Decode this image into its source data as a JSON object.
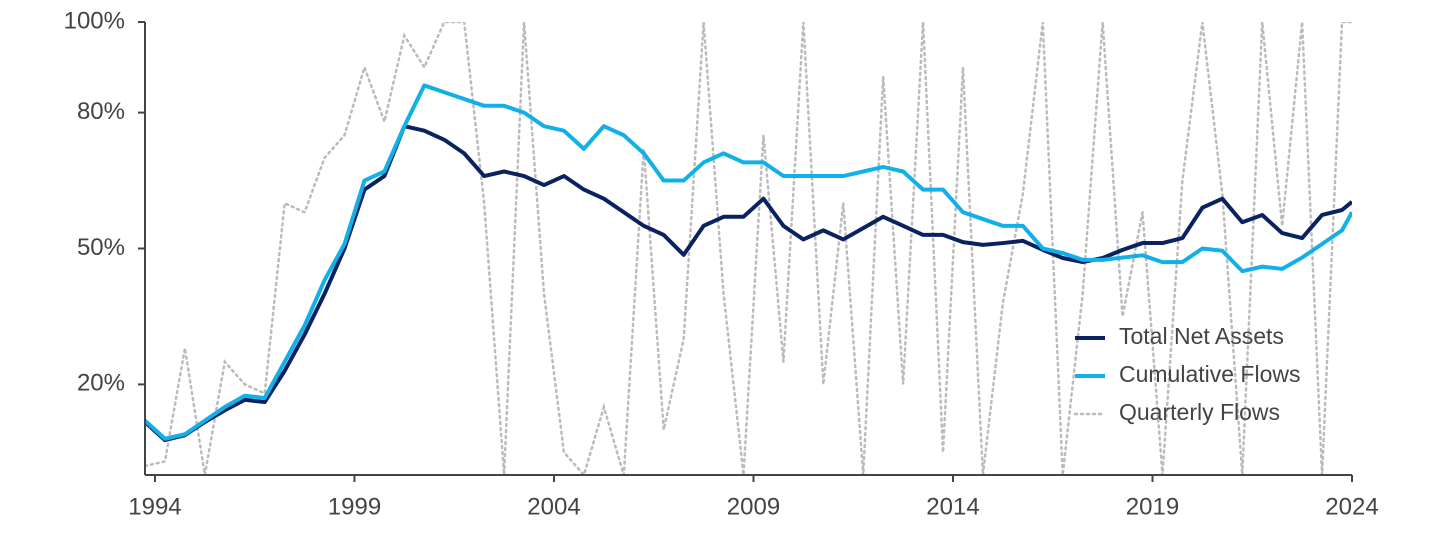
{
  "chart_data": {
    "type": "line",
    "x": [
      1993.75,
      1994.25,
      1994.75,
      1995.25,
      1995.75,
      1996.25,
      1996.75,
      1997.25,
      1997.75,
      1998.25,
      1998.75,
      1999.25,
      1999.75,
      2000.25,
      2000.75,
      2001.25,
      2001.75,
      2002.25,
      2002.75,
      2003.25,
      2003.75,
      2004.25,
      2004.75,
      2005.25,
      2005.75,
      2006.25,
      2006.75,
      2007.25,
      2007.75,
      2008.25,
      2008.75,
      2009.25,
      2009.75,
      2010.25,
      2010.75,
      2011.25,
      2011.75,
      2012.25,
      2012.75,
      2013.25,
      2013.75,
      2014.25,
      2014.75,
      2015.25,
      2015.75,
      2016.25,
      2016.75,
      2017.25,
      2017.75,
      2018.25,
      2018.75,
      2019.25,
      2019.75,
      2020.25,
      2020.75,
      2021.25,
      2021.75,
      2022.25,
      2022.75,
      2023.25,
      2023.75,
      2024
    ],
    "series": [
      {
        "name": "Total Net Assets",
        "color": "#0b2260",
        "style": "solid",
        "values": [
          11.7,
          7.7,
          8.8,
          11.7,
          14.3,
          16.6,
          16.1,
          23,
          31,
          40,
          50,
          63,
          66,
          77,
          76,
          74,
          71,
          66,
          67,
          66,
          64,
          66,
          63,
          61,
          58,
          55,
          53,
          48.6,
          55,
          57,
          57,
          61,
          55,
          52,
          54,
          52,
          54.5,
          57,
          55,
          53,
          53,
          51.4,
          50.8,
          51.2,
          51.7,
          49.7,
          47.9,
          47,
          47.9,
          49.7,
          51.2,
          51.2,
          52.3,
          59,
          61,
          55.8,
          57.4,
          53.4,
          52.3,
          57.4,
          58.5,
          60.3
        ]
      },
      {
        "name": "Cumulative Flows",
        "color": "#11b0e8",
        "style": "solid",
        "values": [
          12,
          8,
          9,
          12,
          15,
          17.5,
          17,
          25,
          33,
          43,
          51,
          65,
          67,
          77,
          86,
          84.5,
          83,
          81.5,
          81.5,
          80,
          77,
          76,
          72,
          77,
          75,
          71,
          65,
          65,
          69,
          71,
          69,
          69,
          66,
          66,
          66,
          66,
          67,
          68,
          67,
          63,
          63,
          58,
          56.5,
          55,
          55,
          50,
          49,
          47.5,
          47.5,
          48,
          48.5,
          47,
          47,
          50,
          49.5,
          45,
          46,
          45.5,
          48,
          51,
          54,
          58
        ]
      },
      {
        "name": "Quarterly Flows",
        "color": "#bbbbbb",
        "style": "dotted",
        "values": [
          2,
          3,
          28,
          0,
          25,
          20,
          18,
          60,
          58,
          70,
          75,
          90,
          78,
          97,
          90,
          100,
          100,
          60,
          0,
          100,
          40,
          5,
          0,
          15,
          0,
          72,
          10,
          30,
          100,
          40,
          0,
          75,
          25,
          100,
          20,
          60,
          0,
          88,
          20,
          100,
          5,
          90,
          0,
          38,
          62,
          100,
          0,
          40,
          100,
          35,
          58,
          0,
          65,
          100,
          62,
          0,
          100,
          55,
          100,
          0,
          100,
          100
        ]
      }
    ],
    "xlim": [
      1993.75,
      2024
    ],
    "xticks": [
      1994,
      1999,
      2004,
      2009,
      2014,
      2019,
      2024
    ],
    "ylim": [
      0,
      100
    ],
    "yticks": [
      {
        "value": 20,
        "label": "20%"
      },
      {
        "value": 50,
        "label": "50%"
      },
      {
        "value": 80,
        "label": "80%"
      },
      {
        "value": 100,
        "label": "100%"
      }
    ],
    "grid": false,
    "legend": "lower right"
  }
}
